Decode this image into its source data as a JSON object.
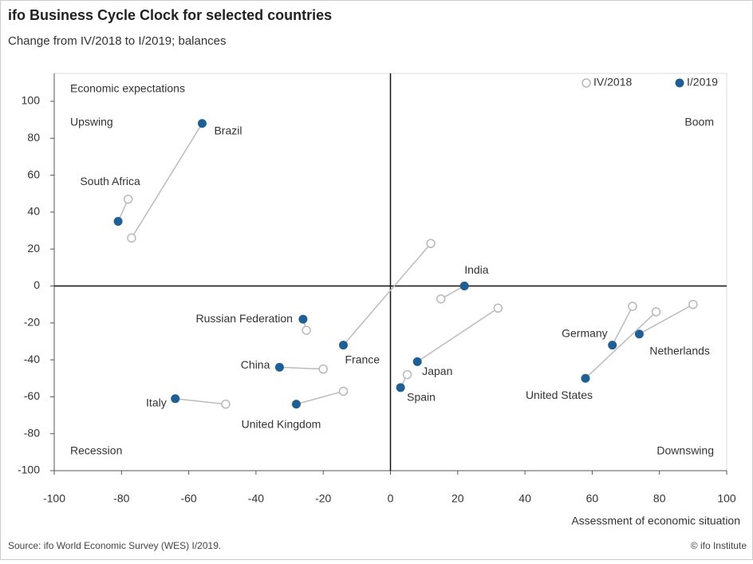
{
  "chart_data": {
    "type": "scatter",
    "title": "ifo Business Cycle Clock for selected countries",
    "subtitle": "Change from IV/2018 to I/2019; balances",
    "y_label": "Economic expectations",
    "x_label": "Assessment of economic situation",
    "quadrant_labels": [
      "Upswing",
      "Boom",
      "Recession",
      "Downswing"
    ],
    "source": "Source: ifo World Economic Survey (WES) I/2019.",
    "credit": "© ifo Institute",
    "categories": [
      "Brazil",
      "South Africa",
      "Russian Federation",
      "France",
      "India",
      "Japan",
      "Spain",
      "China",
      "Italy",
      "United Kingdom",
      "Germany",
      "Netherlands",
      "United States"
    ],
    "series": [
      {
        "name": "IV/2018",
        "color": "#b8b8b8",
        "x": [
          -77,
          -78,
          -25,
          12,
          15,
          32,
          5,
          -20,
          -49,
          -14,
          72,
          90,
          79
        ],
        "values": [
          26,
          47,
          -24,
          23,
          -7,
          -12,
          -48,
          -45,
          -64,
          -57,
          -11,
          -10,
          -14
        ]
      },
      {
        "name": "I/2019",
        "color": "#1f5f93",
        "x": [
          -56,
          -81,
          -26,
          -14,
          22,
          8,
          3,
          -33,
          -64,
          -28,
          66,
          74,
          58
        ],
        "values": [
          88,
          35,
          -18,
          -32,
          0,
          -41,
          -55,
          -44,
          -61,
          -64,
          -32,
          -26,
          -50
        ]
      }
    ],
    "xlim": [
      -100,
      100
    ],
    "ylim": [
      -100,
      100
    ],
    "xticks": [
      -100,
      -80,
      -60,
      -40,
      -20,
      0,
      20,
      40,
      60,
      80,
      100
    ],
    "yticks": [
      -100,
      -80,
      -60,
      -40,
      -20,
      0,
      20,
      40,
      60,
      80,
      100
    ],
    "legend": "top-right"
  }
}
